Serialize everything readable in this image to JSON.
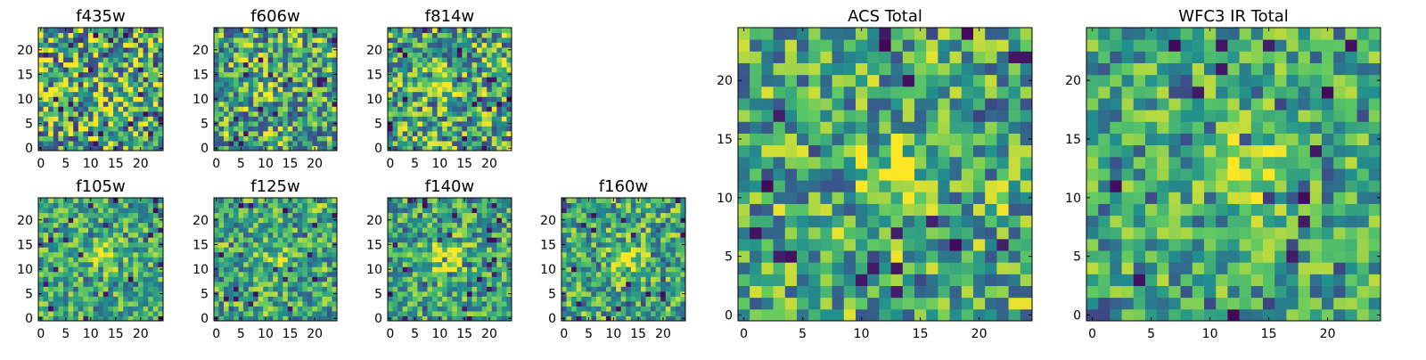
{
  "figure": {
    "panel_titles": [
      "f435w",
      "f606w",
      "f814w",
      "f105w",
      "f125w",
      "f140w",
      "f160w",
      "ACS Total",
      "WFC3 IR Total"
    ]
  },
  "colormap": [
    "#440154",
    "#3b528b",
    "#21908d",
    "#5dc863",
    "#fde725"
  ],
  "chart_data": [
    {
      "type": "heatmap",
      "title": "f435w",
      "grid": false,
      "seed": 11,
      "cols": 25,
      "rows": 25,
      "xlim": [
        0,
        24
      ],
      "ylim": [
        0,
        24
      ],
      "xticks": [
        0,
        5,
        10,
        15,
        20
      ],
      "yticks": [
        0,
        5,
        10,
        15,
        20
      ],
      "source": {
        "x": 12,
        "y": 12,
        "amplitude": 0.08,
        "sigma": 2.5
      },
      "noise_level": 0.6,
      "value_range": [
        0,
        1
      ]
    },
    {
      "type": "heatmap",
      "title": "f606w",
      "grid": false,
      "seed": 23,
      "cols": 25,
      "rows": 25,
      "xlim": [
        0,
        24
      ],
      "ylim": [
        0,
        24
      ],
      "xticks": [
        0,
        5,
        10,
        15,
        20
      ],
      "yticks": [
        0,
        5,
        10,
        15,
        20
      ],
      "source": {
        "x": 11.5,
        "y": 12.5,
        "amplitude": 0.22,
        "sigma": 1.8
      },
      "noise_level": 0.5,
      "value_range": [
        0,
        1
      ]
    },
    {
      "type": "heatmap",
      "title": "f814w",
      "grid": false,
      "seed": 37,
      "cols": 25,
      "rows": 25,
      "xlim": [
        0,
        24
      ],
      "ylim": [
        0,
        24
      ],
      "xticks": [
        0,
        5,
        10,
        15,
        20
      ],
      "yticks": [
        0,
        5,
        10,
        15,
        20
      ],
      "source": {
        "x": 12,
        "y": 12.5,
        "amplitude": 0.35,
        "sigma": 1.6
      },
      "noise_level": 0.5,
      "value_range": [
        0,
        1
      ]
    },
    {
      "type": "heatmap",
      "title": "f105w",
      "grid": false,
      "seed": 41,
      "cols": 25,
      "rows": 25,
      "xlim": [
        0,
        24
      ],
      "ylim": [
        0,
        24
      ],
      "xticks": [
        0,
        5,
        10,
        15,
        20
      ],
      "yticks": [
        0,
        5,
        10,
        15,
        20
      ],
      "source": {
        "x": 13,
        "y": 13,
        "amplitude": 0.3,
        "sigma": 2.2
      },
      "noise_level": 0.35,
      "value_range": [
        0,
        1
      ]
    },
    {
      "type": "heatmap",
      "title": "f125w",
      "grid": false,
      "seed": 53,
      "cols": 25,
      "rows": 25,
      "xlim": [
        0,
        24
      ],
      "ylim": [
        0,
        24
      ],
      "xticks": [
        0,
        5,
        10,
        15,
        20
      ],
      "yticks": [
        0,
        5,
        10,
        15,
        20
      ],
      "source": {
        "x": 12.5,
        "y": 12.5,
        "amplitude": 0.12,
        "sigma": 2.5
      },
      "noise_level": 0.4,
      "value_range": [
        0,
        1
      ]
    },
    {
      "type": "heatmap",
      "title": "f140w",
      "grid": false,
      "seed": 67,
      "cols": 25,
      "rows": 25,
      "xlim": [
        0,
        24
      ],
      "ylim": [
        0,
        24
      ],
      "xticks": [
        0,
        5,
        10,
        15,
        20
      ],
      "yticks": [
        0,
        5,
        10,
        15,
        20
      ],
      "source": {
        "x": 12,
        "y": 12,
        "amplitude": 0.35,
        "sigma": 2.8
      },
      "noise_level": 0.35,
      "value_range": [
        0,
        1
      ]
    },
    {
      "type": "heatmap",
      "title": "f160w",
      "grid": false,
      "seed": 79,
      "cols": 25,
      "rows": 25,
      "xlim": [
        0,
        24
      ],
      "ylim": [
        0,
        24
      ],
      "xticks": [
        0,
        5,
        10,
        15,
        20
      ],
      "yticks": [
        0,
        5,
        10,
        15,
        20
      ],
      "source": {
        "x": 13,
        "y": 12,
        "amplitude": 0.35,
        "sigma": 2.0
      },
      "noise_level": 0.4,
      "value_range": [
        0,
        1
      ]
    },
    {
      "type": "heatmap",
      "title": "ACS Total",
      "grid": false,
      "seed": 89,
      "cols": 25,
      "rows": 25,
      "xlim": [
        0,
        24
      ],
      "ylim": [
        0,
        24
      ],
      "xticks": [
        0,
        5,
        10,
        15,
        20
      ],
      "yticks": [
        0,
        5,
        10,
        15,
        20
      ],
      "source": {
        "x": 12.5,
        "y": 12,
        "amplitude": 0.3,
        "sigma": 2.0
      },
      "noise_level": 0.45,
      "value_range": [
        0,
        1
      ]
    },
    {
      "type": "heatmap",
      "title": "WFC3 IR Total",
      "grid": false,
      "seed": 97,
      "cols": 25,
      "rows": 25,
      "xlim": [
        0,
        24
      ],
      "ylim": [
        0,
        24
      ],
      "xticks": [
        0,
        5,
        10,
        15,
        20
      ],
      "yticks": [
        0,
        5,
        10,
        15,
        20
      ],
      "source": {
        "x": 12.5,
        "y": 12.5,
        "amplitude": 0.4,
        "sigma": 2.2
      },
      "noise_level": 0.35,
      "value_range": [
        0,
        1
      ]
    }
  ]
}
